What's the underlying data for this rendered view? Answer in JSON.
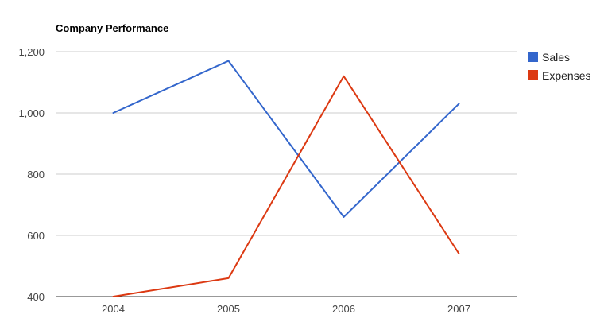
{
  "chart_data": {
    "type": "line",
    "title": "Company Performance",
    "categories": [
      "2004",
      "2005",
      "2006",
      "2007"
    ],
    "series": [
      {
        "name": "Sales",
        "values": [
          1000,
          1170,
          660,
          1030
        ],
        "color": "#3366cc"
      },
      {
        "name": "Expenses",
        "values": [
          400,
          460,
          1120,
          540
        ],
        "color": "#dc3912"
      }
    ],
    "ylim": [
      400,
      1200
    ],
    "yticks": [
      400,
      600,
      800,
      1000,
      1200
    ],
    "ytick_labels": [
      "400",
      "600",
      "800",
      "1,000",
      "1,200"
    ],
    "grid": true,
    "legend": "right"
  }
}
